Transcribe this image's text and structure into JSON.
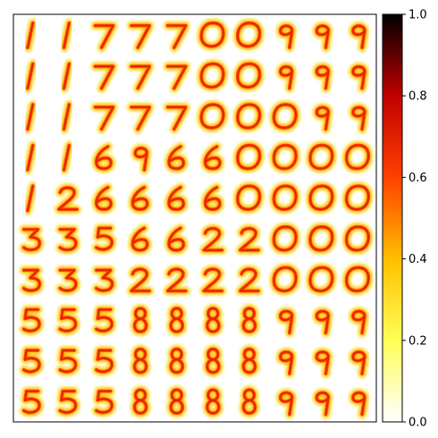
{
  "chart_data": {
    "type": "heatmap",
    "description_of_content": "",
    "grid_rows": 10,
    "grid_cols": 10,
    "cells": [
      [
        "1",
        "1",
        "7",
        "7",
        "7",
        "0",
        "0",
        "9",
        "9",
        "9"
      ],
      [
        "1",
        "1",
        "7",
        "7",
        "7",
        "0",
        "0",
        "9",
        "9",
        "9"
      ],
      [
        "1",
        "1",
        "7",
        "7",
        "7",
        "0",
        "0",
        "0",
        "9",
        "9"
      ],
      [
        "1",
        "1",
        "6",
        "9",
        "6",
        "6",
        "0",
        "0",
        "0",
        "0"
      ],
      [
        "1",
        "2",
        "6",
        "6",
        "6",
        "6",
        "0",
        "0",
        "0",
        "0"
      ],
      [
        "3",
        "3",
        "5",
        "6",
        "6",
        "2",
        "2",
        "0",
        "0",
        "0"
      ],
      [
        "3",
        "3",
        "3",
        "2",
        "2",
        "2",
        "2",
        "0",
        "0",
        "0"
      ],
      [
        "5",
        "5",
        "5",
        "8",
        "8",
        "8",
        "8",
        "9",
        "9",
        "9"
      ],
      [
        "5",
        "5",
        "5",
        "8",
        "8",
        "8",
        "8",
        "9",
        "9",
        "9"
      ],
      [
        "5",
        "5",
        "5",
        "8",
        "8",
        "8",
        "8",
        "9",
        "9",
        "9"
      ]
    ],
    "colormap": "hot_r",
    "colorbar": {
      "min": 0.0,
      "max": 1.0,
      "ticks": [
        0.0,
        0.2,
        0.4,
        0.6,
        0.8,
        1.0
      ],
      "tick_labels": [
        "0.0",
        "0.2",
        "0.4",
        "0.6",
        "0.8",
        "1.0"
      ]
    },
    "axes_ticks_visible": false,
    "grid": false
  },
  "colors": {
    "background": "#ffffff",
    "axis": "#000000"
  }
}
